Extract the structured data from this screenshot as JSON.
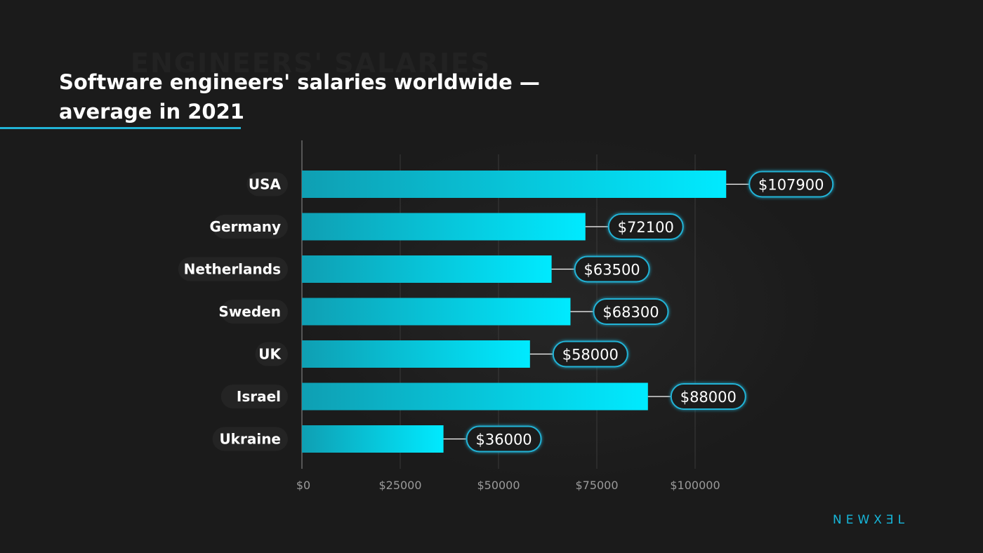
{
  "title": "Software engineers' salaries worldwide — average in 2021",
  "background_title": "ENGINEERS' SALARIES",
  "brand": "NEWXƎL",
  "colors": {
    "background": "#1b1b1b",
    "bar_start": "#0f9fb3",
    "bar_end": "#00eaff",
    "accent": "#21b3d6",
    "label_pill": "#242424"
  },
  "chart_data": {
    "type": "bar",
    "orientation": "horizontal",
    "categories": [
      "USA",
      "Germany",
      "Netherlands",
      "Sweden",
      "UK",
      "Israel",
      "Ukraine"
    ],
    "values": [
      107900,
      72100,
      63500,
      68300,
      58000,
      88000,
      36000
    ],
    "value_labels": [
      "$107900",
      "$72100",
      "$63500",
      "$68300",
      "$58000",
      "$88000",
      "$36000"
    ],
    "xlim": [
      0,
      125000
    ],
    "xticks": [
      0,
      25000,
      50000,
      75000,
      100000
    ],
    "xtick_labels": [
      "$0",
      "$25000",
      "$50000",
      "$75000",
      "$100000"
    ],
    "grid": true,
    "xlabel": "",
    "ylabel": ""
  }
}
